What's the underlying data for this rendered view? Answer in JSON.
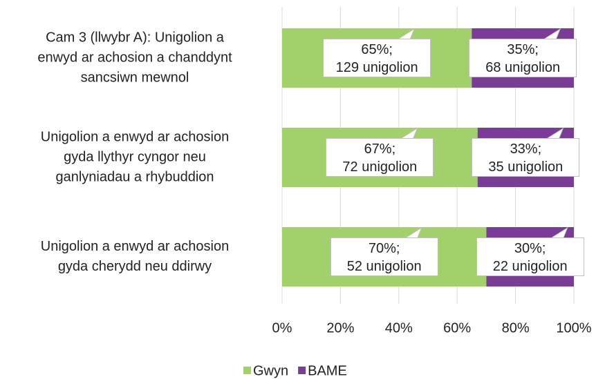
{
  "chart_data": {
    "type": "stacked-bar-horizontal",
    "categories": [
      "Cam 3 (llwybr A): Unigolion a\nenwyd ar achosion a chanddynt\nsancsiwn mewnol",
      "Unigolion a enwyd ar achosion\ngyda llythyr cyngor neu\nganlyniadau a rhybuddion",
      "Unigolion a enwyd ar achosion\ngyda cherydd neu ddirwy"
    ],
    "series": [
      {
        "name": "Gwyn",
        "color": "#a2d16c",
        "values": [
          65,
          67,
          70
        ],
        "value_labels": [
          "65%;\n129 unigolion",
          "67%;\n72 unigolion",
          "70%;\n52 unigolion"
        ]
      },
      {
        "name": "BAME",
        "color": "#7a3c96",
        "values": [
          35,
          33,
          30
        ],
        "value_labels": [
          "35%;\n68 unigolion",
          "33%;\n35 unigolion",
          "30%;\n22 unigolion"
        ]
      }
    ],
    "xlim": [
      0,
      100
    ],
    "xticks": [
      {
        "value": 0,
        "label": "0%"
      },
      {
        "value": 20,
        "label": "20%"
      },
      {
        "value": 40,
        "label": "40%"
      },
      {
        "value": 60,
        "label": "60%"
      },
      {
        "value": 80,
        "label": "80%"
      },
      {
        "value": 100,
        "label": "100%"
      }
    ],
    "grid": true,
    "legend": "bottom"
  }
}
